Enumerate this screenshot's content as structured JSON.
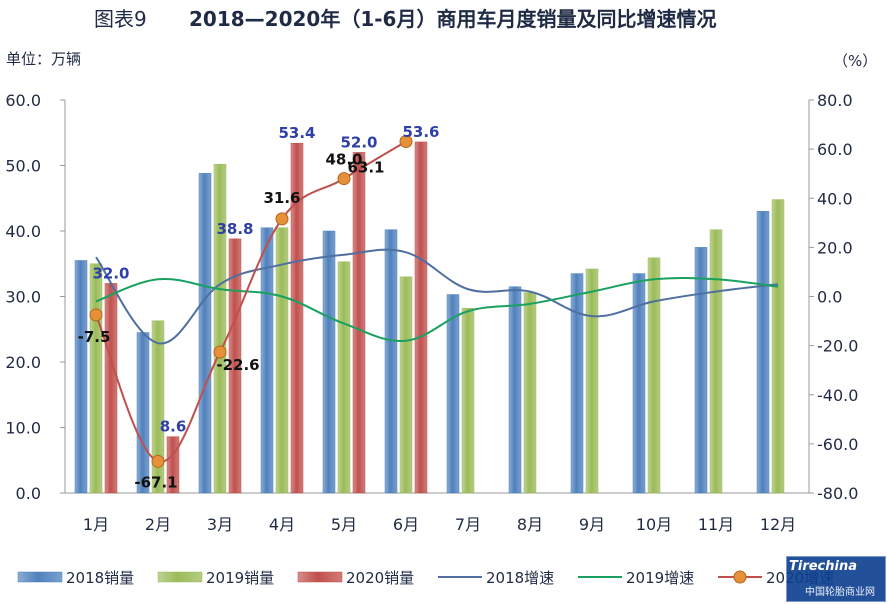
{
  "chart_data": {
    "type": "bar",
    "title": "2018—2020年（1-6月）商用车月度销量及同比增速情况",
    "title_prefix": "图表9",
    "unit_left": "单位：万辆",
    "unit_right": "（%）",
    "categories": [
      "1月",
      "2月",
      "3月",
      "4月",
      "5月",
      "6月",
      "7月",
      "8月",
      "9月",
      "10月",
      "11月",
      "12月"
    ],
    "y_left": {
      "min": 0,
      "max": 60,
      "step": 10,
      "ticks": [
        "0.0",
        "10.0",
        "20.0",
        "30.0",
        "40.0",
        "50.0",
        "60.0"
      ]
    },
    "y_right": {
      "min": -80,
      "max": 80,
      "step": 20,
      "ticks": [
        "-80.0",
        "-60.0",
        "-40.0",
        "-20.0",
        "0.0",
        "20.0",
        "40.0",
        "60.0",
        "80.0"
      ]
    },
    "bar_series": [
      {
        "name": "2018销量",
        "color": "#4f81bd",
        "values": [
          35.5,
          24.5,
          48.8,
          40.5,
          40.0,
          40.2,
          30.3,
          31.5,
          33.5,
          33.5,
          37.5,
          43.0
        ]
      },
      {
        "name": "2019销量",
        "color": "#9bbb59",
        "values": [
          35.0,
          26.3,
          50.2,
          40.5,
          35.3,
          33.0,
          28.2,
          30.6,
          34.2,
          35.9,
          40.2,
          44.8
        ]
      },
      {
        "name": "2020销量",
        "color": "#c0504d",
        "values": [
          32.0,
          8.6,
          38.8,
          53.4,
          52.0,
          53.6
        ]
      }
    ],
    "bar_labels_2020": [
      "32.0",
      "8.6",
      "38.8",
      "53.4",
      "52.0",
      "53.6"
    ],
    "line_series": [
      {
        "name": "2018增速",
        "color": "#4f6fa0",
        "values": [
          16,
          -19,
          5,
          13,
          17,
          18,
          3,
          2,
          -8,
          -2,
          2,
          5
        ]
      },
      {
        "name": "2019增速",
        "color": "#1aa05f",
        "values": [
          -2,
          7,
          3,
          0,
          -11,
          -18,
          -6,
          -3,
          2,
          7,
          7,
          4
        ]
      },
      {
        "name": "2020增速",
        "color": "#c0504d",
        "marker_color": "#e5913a",
        "values": [
          -7.5,
          -67.1,
          -22.6,
          31.6,
          48.0,
          63.1
        ]
      }
    ],
    "line_labels_2020": [
      "-7.5",
      "-67.1",
      "-22.6",
      "31.6",
      "48.0",
      "63.1"
    ],
    "legend": [
      "2018销量",
      "2019销量",
      "2020销量",
      "2018增速",
      "2019增速",
      "2020增速"
    ],
    "legend_position": "bottom"
  },
  "watermark": {
    "text": "Tirechina",
    "subtext": "中国轮胎商业网"
  }
}
